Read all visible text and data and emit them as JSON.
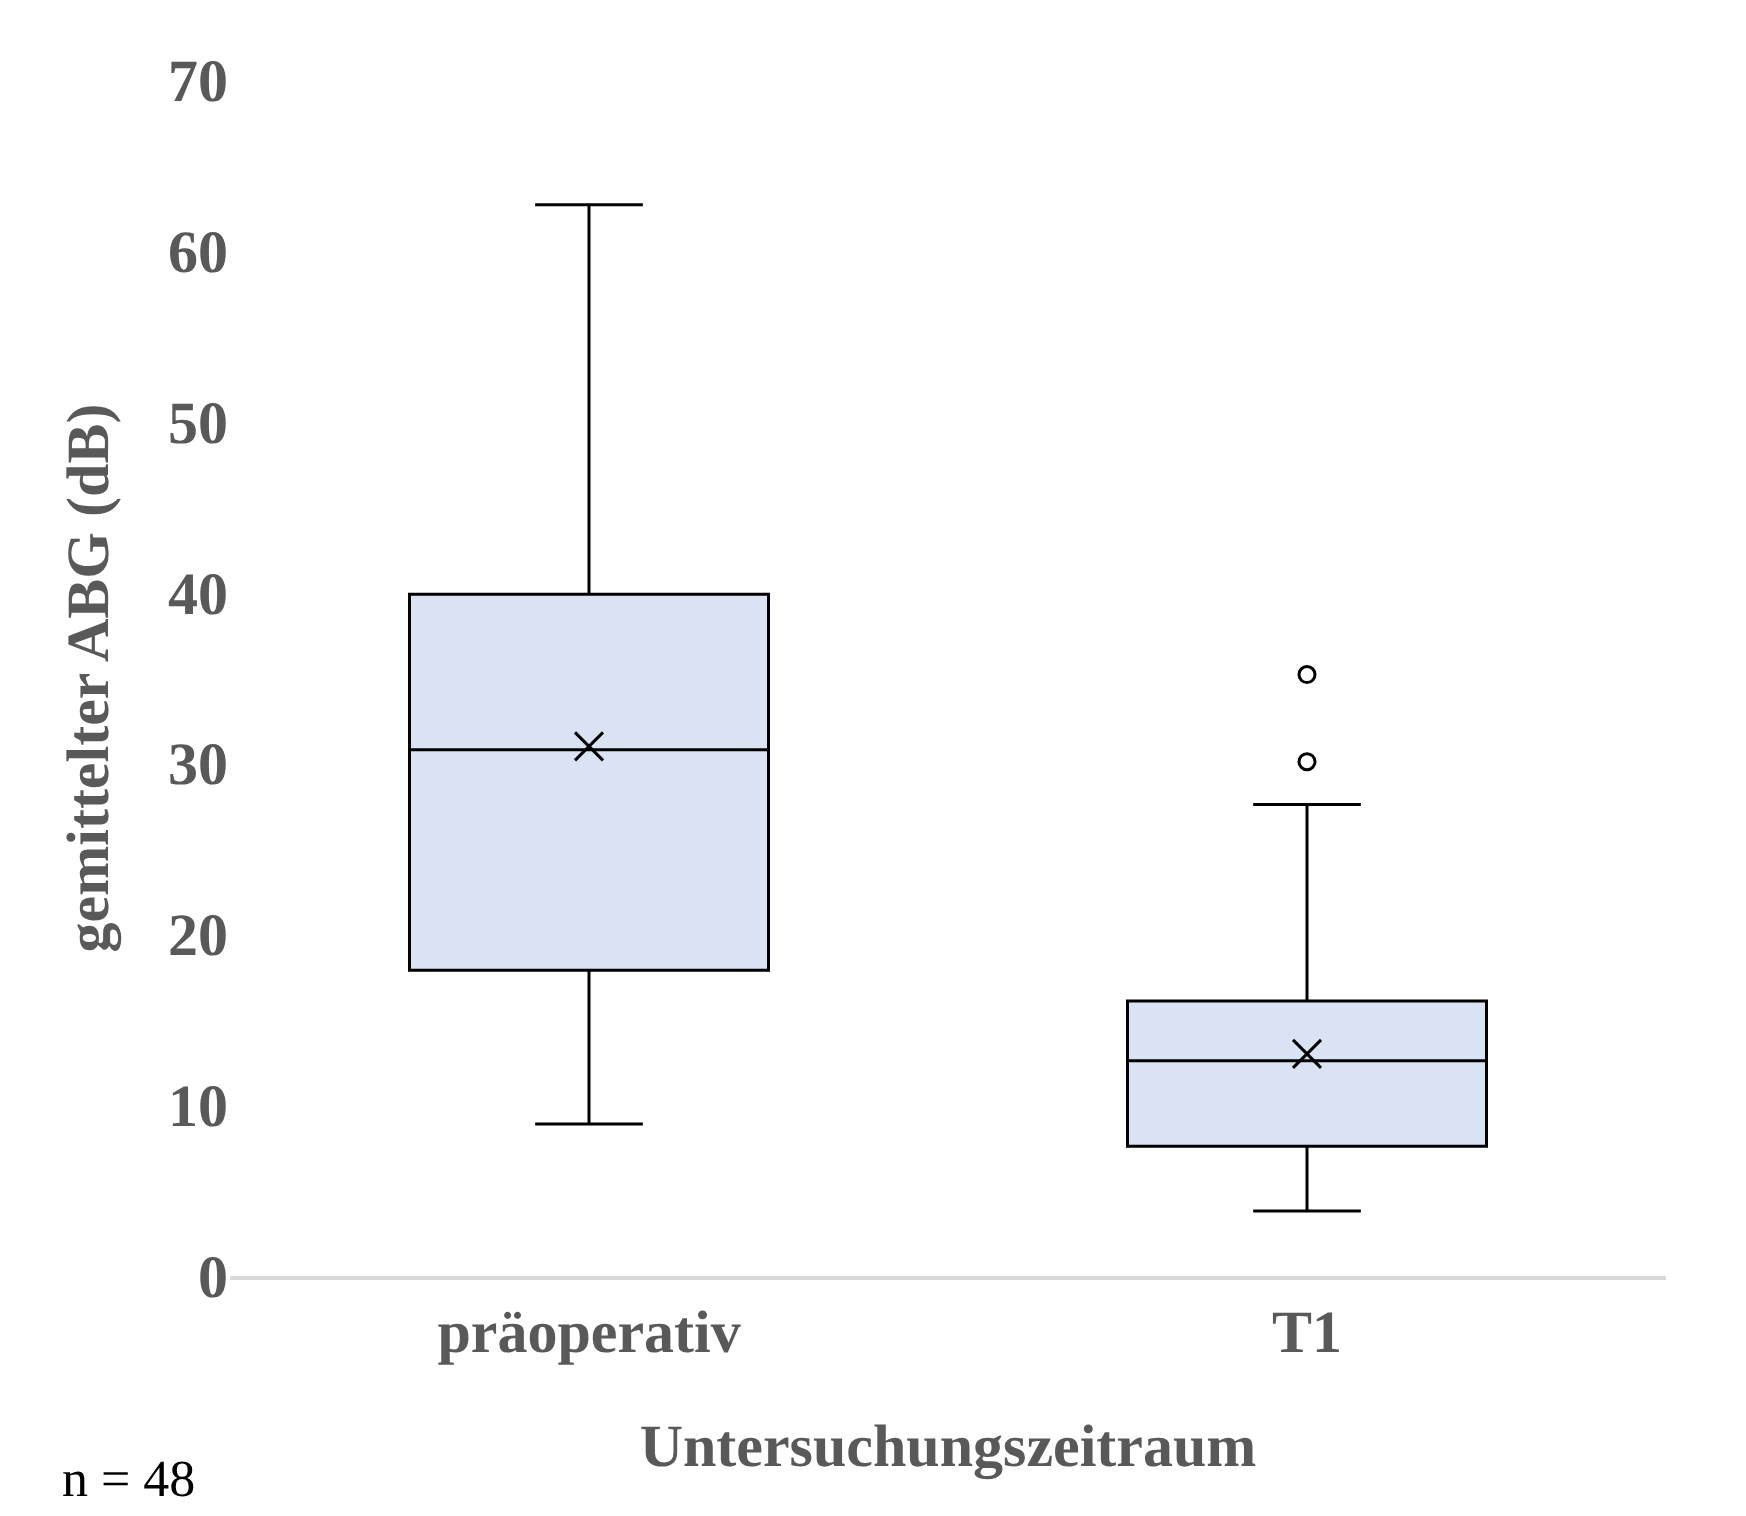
{
  "chart_data": {
    "type": "box",
    "xlabel": "Untersuchungszeitraum",
    "ylabel": "gemittelter ABG (dB)",
    "categories": [
      "präoperativ",
      "T1"
    ],
    "boxes": [
      {
        "low": 8.9,
        "q1": 17.9,
        "median": 30.8,
        "q3": 39.9,
        "high": 62.7,
        "mean": 31.0
      },
      {
        "low": 3.8,
        "q1": 7.6,
        "median": 12.6,
        "q3": 16.1,
        "high": 27.6,
        "mean": 13.0,
        "outliers": [
          30.1,
          35.2
        ]
      }
    ],
    "color": "#dae3f3",
    "ylim": [
      0,
      70
    ],
    "yticks": [
      0,
      10,
      20,
      30,
      40,
      50,
      60,
      70
    ],
    "annotations": [
      "n = 48"
    ]
  }
}
